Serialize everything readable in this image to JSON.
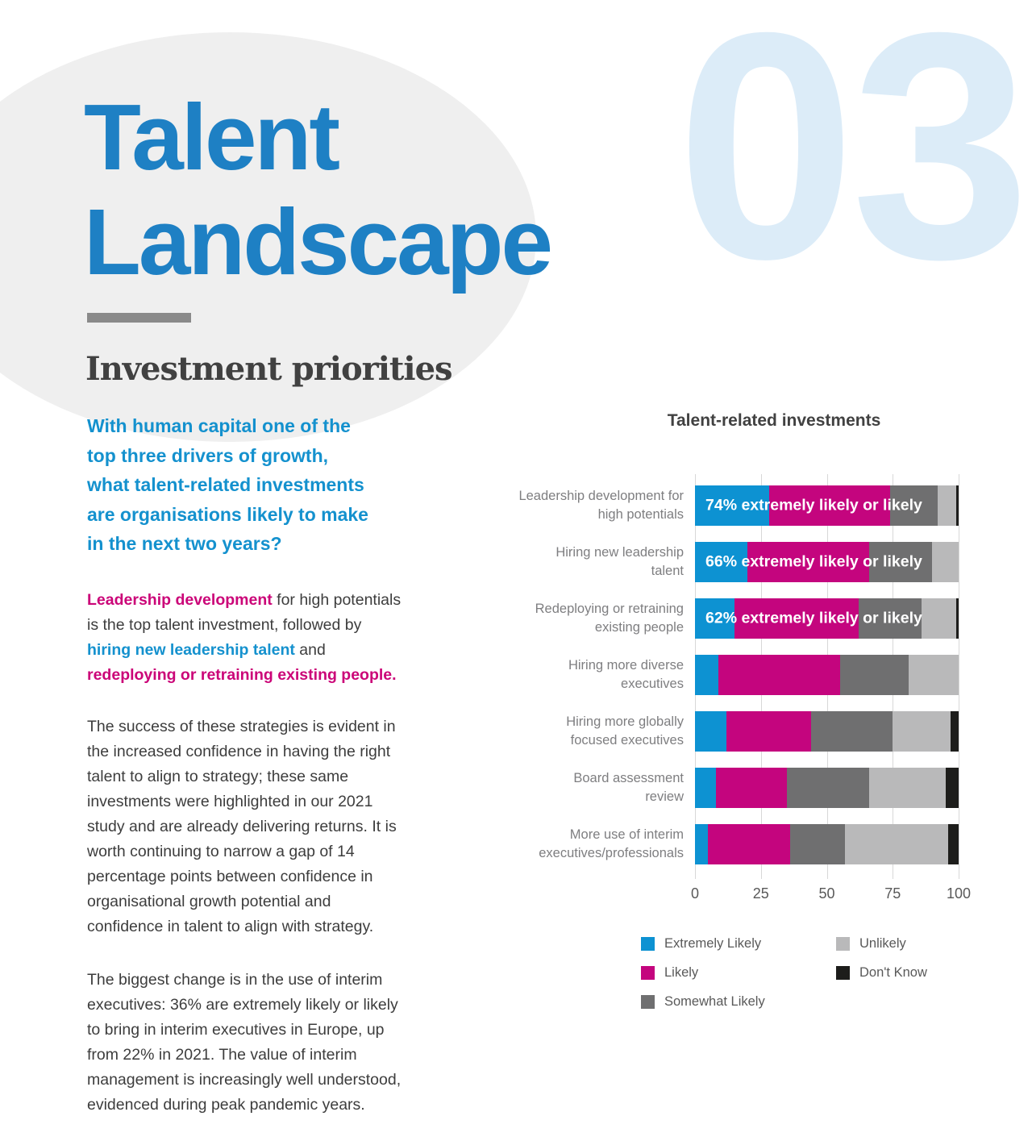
{
  "page": {
    "chapter_number": "03",
    "title": "Talent\nLandscape",
    "section_heading": "Investment priorities",
    "question": "With human capital one of the\ntop three drivers of growth,\nwhat talent-related investments\nare organisations likely to make\nin the next two years?",
    "para1": [
      {
        "text": "Leadership development",
        "style": "magenta-bold"
      },
      {
        "text": " for high potentials\nis the top talent investment, followed by\n",
        "style": "plain"
      },
      {
        "text": "hiring new leadership talent",
        "style": "blue-bold"
      },
      {
        "text": " and\n",
        "style": "plain"
      },
      {
        "text": "redeploying or retraining existing people.",
        "style": "magenta-bold"
      }
    ],
    "para2": "The success of these strategies is evident in\nthe increased confidence in having the right\ntalent to align to strategy; these same\ninvestments were highlighted in our 2021\nstudy and are already delivering returns. It is\nworth continuing to narrow a gap of 14\npercentage points between confidence in\norganisational growth potential and\nconfidence in talent to align with strategy.",
    "para3": "The biggest change is in the use of interim\nexecutives: 36% are extremely likely or likely\nto bring in interim executives in Europe, up\nfrom 22% in 2021. The value of interim\nmanagement is increasingly well understood,\nevidenced during peak pandemic years."
  },
  "colors": {
    "title_blue": "#1e80c4",
    "question_blue": "#1491ce",
    "keyword_magenta": "#cb0578",
    "chapter_light_blue": "#dcecf8",
    "body_text": "#3d3d3d",
    "heading_gray": "#414141",
    "divider_gray": "#8a8a8a"
  },
  "chart_data": {
    "type": "bar",
    "orientation": "horizontal",
    "stacked": true,
    "title": "Talent-related investments",
    "xlabel": "",
    "ylabel": "",
    "xlim": [
      0,
      100
    ],
    "x_ticks": [
      0,
      25,
      50,
      75,
      100
    ],
    "grid": true,
    "legend_position": "bottom",
    "categories": [
      [
        "Leadership development for",
        "high potentials"
      ],
      [
        "Hiring new leadership",
        "talent"
      ],
      [
        "Redeploying or retraining",
        "existing people"
      ],
      [
        "Hiring more diverse",
        "executives"
      ],
      [
        "Hiring more globally",
        "focused executives"
      ],
      [
        "Board assessment",
        "review"
      ],
      [
        "More use of interim",
        "executives/professionals"
      ]
    ],
    "series": [
      {
        "name": "Extremely Likely",
        "color": "#0d92d2",
        "values": [
          28,
          20,
          15,
          9,
          12,
          8,
          5
        ]
      },
      {
        "name": "Likely",
        "color": "#c4057e",
        "values": [
          46,
          46,
          47,
          46,
          32,
          27,
          31
        ]
      },
      {
        "name": "Somewhat Likely",
        "color": "#6f6f70",
        "values": [
          18,
          24,
          24,
          26,
          31,
          31,
          21
        ]
      },
      {
        "name": "Unlikely",
        "color": "#b9b9ba",
        "values": [
          7,
          10,
          13,
          19,
          22,
          29,
          39
        ]
      },
      {
        "name": "Don't Know",
        "color": "#1d1d1b",
        "values": [
          1,
          0,
          1,
          0,
          3,
          5,
          4
        ]
      }
    ],
    "bar_labels": [
      "74% extremely likely or likely",
      "66% extremely likely or likely",
      "62% extremely likely or likely",
      "",
      "",
      "",
      ""
    ]
  }
}
